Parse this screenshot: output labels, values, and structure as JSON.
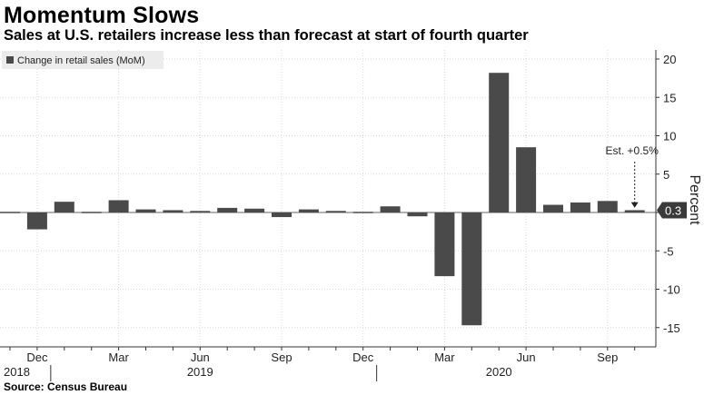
{
  "header": {
    "title": "Momentum Slows",
    "subtitle": "Sales at U.S. retailers increase less than forecast at start of fourth quarter"
  },
  "footer": {
    "source": "Source: Census Bureau"
  },
  "chart_data": {
    "type": "bar",
    "ylabel": "Percent",
    "ylim": [
      -17,
      21
    ],
    "yticks": [
      20,
      15,
      10,
      5,
      0,
      -5,
      -10,
      -15
    ],
    "grid": true,
    "legend": {
      "position": "top-left",
      "entries": [
        "Change in retail sales (MoM)"
      ]
    },
    "series": [
      {
        "name": "Change in retail sales (MoM)",
        "color": "#4a4a4a",
        "categories": [
          "2018-11",
          "2018-12",
          "2019-01",
          "2019-02",
          "2019-03",
          "2019-04",
          "2019-05",
          "2019-06",
          "2019-07",
          "2019-08",
          "2019-09",
          "2019-10",
          "2019-11",
          "2019-12",
          "2020-01",
          "2020-02",
          "2020-03",
          "2020-04",
          "2020-05",
          "2020-06",
          "2020-07",
          "2020-08",
          "2020-09",
          "2020-10"
        ],
        "values": [
          0.1,
          -2.2,
          1.4,
          -0.1,
          1.6,
          0.4,
          0.3,
          0.2,
          0.6,
          0.5,
          -0.6,
          0.4,
          0.2,
          -0.1,
          0.8,
          -0.5,
          -8.3,
          -14.7,
          18.2,
          8.5,
          1.0,
          1.3,
          1.5,
          0.3
        ]
      }
    ],
    "last_value_label": "0.3",
    "annotation": {
      "text": "Est. +0.5%",
      "category": "2020-10",
      "value": 0.5
    },
    "x_tick_labels": [
      {
        "label": "Dec",
        "category": "2018-12"
      },
      {
        "label": "Mar",
        "category": "2019-03"
      },
      {
        "label": "Jun",
        "category": "2019-06"
      },
      {
        "label": "Sep",
        "category": "2019-09"
      },
      {
        "label": "Dec",
        "category": "2019-12"
      },
      {
        "label": "Mar",
        "category": "2020-03"
      },
      {
        "label": "Jun",
        "category": "2020-06"
      },
      {
        "label": "Sep",
        "category": "2020-09"
      }
    ],
    "year_labels": [
      {
        "label": "2018",
        "category": "2018-11"
      },
      {
        "label": "2019",
        "category": "2019-06"
      },
      {
        "label": "2020",
        "category": "2020-05"
      }
    ]
  }
}
